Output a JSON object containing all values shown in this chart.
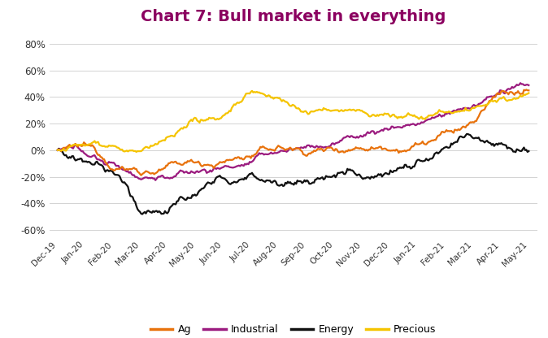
{
  "title": "Chart 7: Bull market in everything",
  "title_color": "#8B0060",
  "title_fontsize": 14,
  "title_bold": true,
  "ylim": [
    -0.65,
    0.9
  ],
  "yticks": [
    -0.6,
    -0.4,
    -0.2,
    0.0,
    0.2,
    0.4,
    0.6,
    0.8
  ],
  "xtick_labels": [
    "Dec-19",
    "Jan-20",
    "Feb-20",
    "Mar-20",
    "Apr-20",
    "May-20",
    "Jun-20",
    "Jul-20",
    "Aug-20",
    "Sep-20",
    "Oct-20",
    "Nov-20",
    "Dec-20",
    "Jan-21",
    "Feb-21",
    "Mar-21",
    "Apr-21",
    "May-21"
  ],
  "series_colors": {
    "Ag": "#E8720C",
    "Industrial": "#9B1B7F",
    "Energy": "#111111",
    "Precious": "#F5C400"
  },
  "background_color": "#FFFFFF",
  "grid_color": "#CCCCCC",
  "linewidth": 1.6,
  "noise_scale": 0.008,
  "n_points": 396
}
